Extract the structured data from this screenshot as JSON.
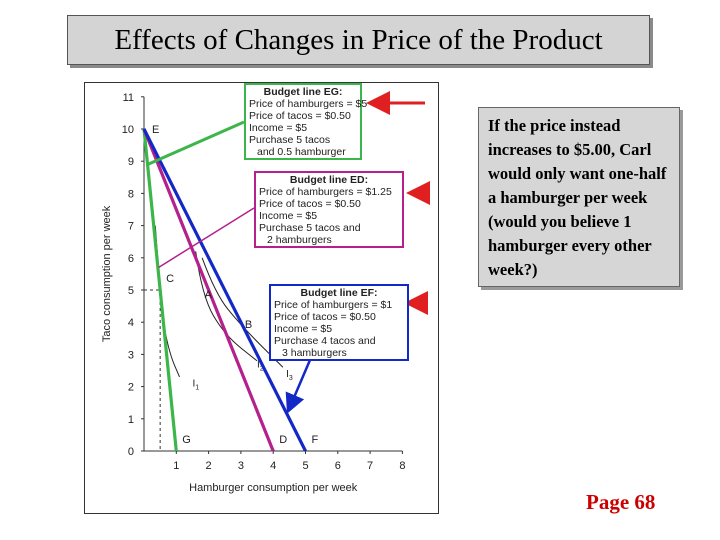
{
  "slide": {
    "title": "Effects of Changes in Price of the Product",
    "note": "If the price instead increases to $5.00, Carl would only want one-half a hamburger per week (would you believe 1 hamburger every other week?)",
    "page": "Page 68"
  },
  "colors": {
    "EG": "#3cb54a",
    "ED": "#b4208c",
    "EF": "#1428c8",
    "arrow": "#e02020",
    "page": "#cc0000"
  },
  "budget_boxes": {
    "EG": {
      "title": "Budget line EG:",
      "lines": [
        "Price of hamburgers = $5",
        "Price of tacos = $0.50",
        "Income = $5",
        "Purchase 5 tacos",
        "and 0.5 hamburger"
      ]
    },
    "ED": {
      "title": "Budget line ED:",
      "lines": [
        "Price of hamburgers = $1.25",
        "Price of tacos = $0.50",
        "Income = $5",
        "Purchase 5 tacos and",
        "2 hamburgers"
      ]
    },
    "EF": {
      "title": "Budget line EF:",
      "lines": [
        "Price of hamburgers = $1",
        "Price of tacos = $0.50",
        "Income = $5",
        "Purchase 4 tacos and",
        "3 hamburgers"
      ]
    }
  },
  "chart_data": {
    "type": "line",
    "xlabel": "Hamburger consumption per week",
    "ylabel": "Taco consumption per week",
    "xlim": [
      0,
      8
    ],
    "ylim": [
      0,
      11
    ],
    "xticks": [
      1,
      2,
      3,
      4,
      5,
      6,
      7,
      8
    ],
    "yticks": [
      0,
      1,
      2,
      3,
      4,
      5,
      6,
      7,
      8,
      9,
      10,
      11
    ],
    "series": [
      {
        "name": "EG",
        "x": [
          0,
          1
        ],
        "y": [
          10,
          0
        ]
      },
      {
        "name": "ED",
        "x": [
          0,
          4
        ],
        "y": [
          10,
          0
        ]
      },
      {
        "name": "EF",
        "x": [
          0,
          5
        ],
        "y": [
          10,
          0
        ]
      }
    ],
    "indifference_curves": [
      {
        "name": "I1",
        "x": [
          0.35,
          0.55,
          0.8,
          1.1
        ],
        "y": [
          7,
          4.2,
          3.0,
          2.3
        ]
      },
      {
        "name": "I2",
        "x": [
          1.6,
          1.8,
          2.5,
          3.5
        ],
        "y": [
          6.2,
          4.8,
          3.6,
          2.8
        ]
      },
      {
        "name": "I3",
        "x": [
          1.8,
          2.2,
          3.0,
          4.3
        ],
        "y": [
          6.0,
          4.9,
          3.9,
          2.6
        ]
      }
    ],
    "points": [
      {
        "label": "E",
        "x": 0,
        "y": 10
      },
      {
        "label": "C",
        "x": 0.5,
        "y": 5
      },
      {
        "label": "A",
        "x": 2,
        "y": 5
      },
      {
        "label": "B",
        "x": 3,
        "y": 4
      },
      {
        "label": "G",
        "x": 1,
        "y": 0
      },
      {
        "label": "D",
        "x": 4,
        "y": 0
      },
      {
        "label": "F",
        "x": 5,
        "y": 0
      }
    ],
    "curve_labels": [
      "I1",
      "I2",
      "I3"
    ]
  }
}
